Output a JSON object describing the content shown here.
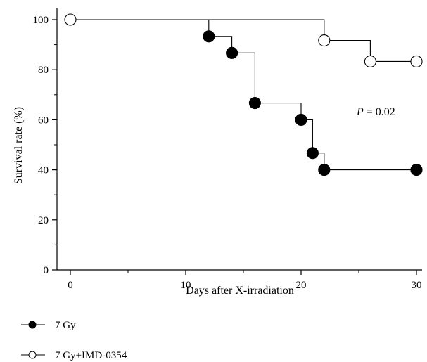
{
  "chart_data": {
    "type": "line",
    "subtype": "kaplan-meier step survival curve",
    "xlabel": "Days after X-irradiation",
    "ylabel": "Survival rate (%)",
    "xlim": [
      -1,
      31
    ],
    "ylim": [
      0,
      104
    ],
    "x_ticks": [
      0,
      10,
      20,
      30
    ],
    "y_ticks": [
      0,
      20,
      40,
      60,
      80,
      100
    ],
    "grid": false,
    "legend_position": "bottom-left",
    "annotation": {
      "prefix": "P",
      "text": " = 0.02"
    },
    "series": [
      {
        "name": "7 Gy",
        "marker": "filled-circle",
        "color": "#000000",
        "steps": [
          [
            0,
            100
          ],
          [
            12,
            93.3
          ],
          [
            14,
            86.7
          ],
          [
            16,
            66.7
          ],
          [
            20,
            60
          ],
          [
            21,
            46.7
          ],
          [
            22,
            40
          ],
          [
            30,
            40
          ]
        ],
        "markers": [
          [
            12,
            93.3
          ],
          [
            14,
            86.7
          ],
          [
            16,
            66.7
          ],
          [
            20,
            60
          ],
          [
            21,
            46.7
          ],
          [
            22,
            40
          ],
          [
            30,
            40
          ]
        ]
      },
      {
        "name": "7 Gy+IMD-0354",
        "marker": "open-circle",
        "color": "#000000",
        "steps": [
          [
            0,
            100
          ],
          [
            22,
            91.7
          ],
          [
            26,
            83.3
          ],
          [
            30,
            83.3
          ]
        ],
        "markers": [
          [
            0,
            100
          ],
          [
            22,
            91.7
          ],
          [
            26,
            83.3
          ],
          [
            30,
            83.3
          ]
        ]
      }
    ]
  }
}
